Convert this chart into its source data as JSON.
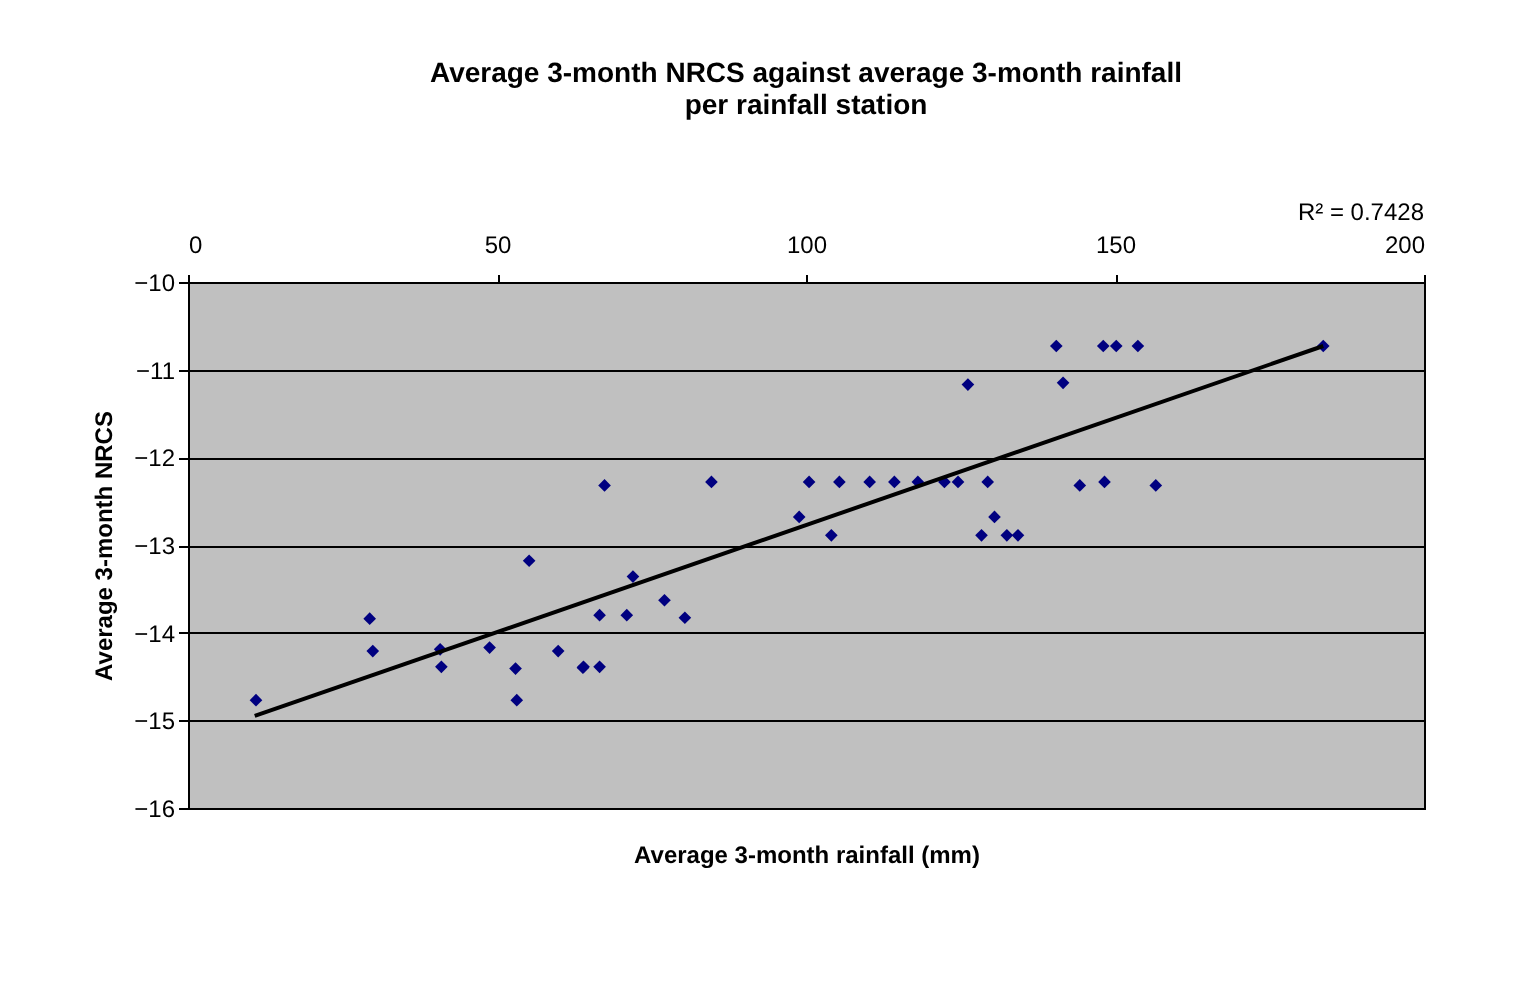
{
  "chart_data": {
    "type": "scatter",
    "title": "Average 3-month NRCS against average 3-month rainfall\nper rainfall station",
    "xlabel": "Average 3-month rainfall (mm)",
    "ylabel": "Average 3-month NRCS",
    "annotations": [
      "R² = 0.7428"
    ],
    "xlim": [
      0,
      200
    ],
    "xticks": [
      0,
      50,
      100,
      150,
      200
    ],
    "ylim": [
      -16,
      -10
    ],
    "yticks": [
      -16,
      -15,
      -14,
      -13,
      -12,
      -11,
      -10
    ],
    "grid": "y",
    "series": [
      {
        "color": "#000080",
        "marker": "diamond",
        "x": [
          11,
          29.4,
          29.9,
          40.8,
          41,
          48.8,
          53,
          53.2,
          55.2,
          59.9,
          63.9,
          64,
          66.6,
          67.4,
          66.6,
          71,
          72,
          77.1,
          80.4,
          84.7,
          98.9,
          100.5,
          104.1,
          105.4,
          110.3,
          114.3,
          118.1,
          122.4,
          124.6,
          126.2,
          129.4,
          130.5,
          128.4,
          132.5,
          134.3,
          140.5,
          141.6,
          144.3,
          148.3,
          148.1,
          150.2,
          153.7,
          156.6,
          183.7
        ],
        "values": [
          -14.77,
          -13.84,
          -14.21,
          -14.19,
          -14.39,
          -14.17,
          -14.41,
          -14.77,
          -13.18,
          -14.21,
          -14.4,
          -14.39,
          -14.39,
          -12.32,
          -13.8,
          -13.8,
          -13.36,
          -13.63,
          -13.83,
          -12.28,
          -12.68,
          -12.28,
          -12.89,
          -12.28,
          -12.28,
          -12.28,
          -12.28,
          -12.28,
          -12.28,
          -11.17,
          -12.28,
          -12.68,
          -12.89,
          -12.89,
          -12.89,
          -10.73,
          -11.15,
          -12.32,
          -12.28,
          -10.73,
          -10.73,
          -10.73,
          -12.32,
          -10.73
        ]
      },
      {
        "type": "line",
        "marker": "none",
        "color": "#000000",
        "x": [
          10.8,
          183.7
        ],
        "values": [
          -14.95,
          -10.73
        ]
      }
    ]
  }
}
